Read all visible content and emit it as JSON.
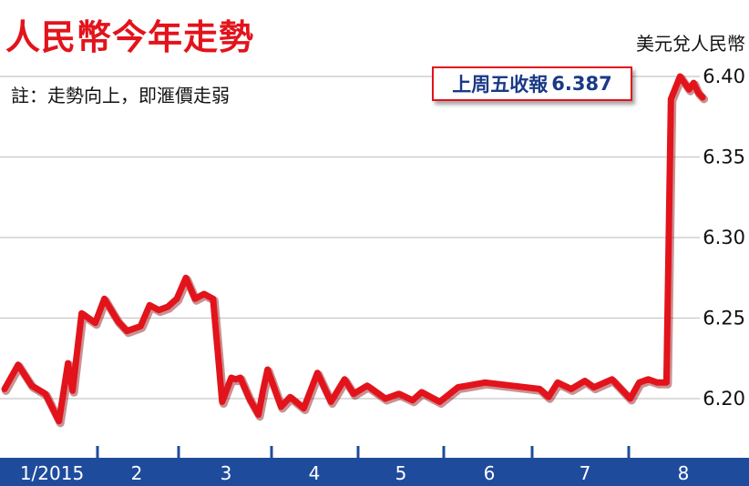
{
  "chart_data": {
    "type": "line",
    "title": "人民幣今年走勢",
    "note": "註：走勢向上，即滙價走弱",
    "unit_label": "美元兌人民幣",
    "callout": {
      "label": "上周五收報",
      "value": "6.387"
    },
    "y_ticks": [
      "6.20",
      "6.25",
      "6.30",
      "6.35",
      "6.40"
    ],
    "ylim": [
      6.18,
      6.405
    ],
    "x_ticks": [
      "1/2015",
      "2",
      "3",
      "4",
      "5",
      "6",
      "7",
      "8"
    ],
    "grid": "horizontal",
    "colors": {
      "line": "#e3131b",
      "axis_bar": "#1f4b9d",
      "grid": "#c8c8c8"
    },
    "series": [
      {
        "x": [
          0.0,
          0.15,
          0.3,
          0.45,
          0.6,
          0.7,
          0.75,
          0.85,
          1.0,
          1.1,
          1.25,
          1.35,
          1.5,
          1.6,
          1.7,
          1.8,
          1.9,
          2.0,
          2.1,
          2.2,
          2.3,
          2.4,
          2.5,
          2.55,
          2.6,
          2.7,
          2.8,
          2.85,
          2.9,
          3.05,
          3.15,
          3.3,
          3.45,
          3.6,
          3.75,
          3.85,
          4.0,
          4.2,
          4.35,
          4.5,
          4.6,
          4.8,
          5.0,
          5.3,
          5.6,
          5.9,
          6.0,
          6.1,
          6.25,
          6.4,
          6.5,
          6.7,
          6.9,
          7.0,
          7.1,
          7.2,
          7.25,
          7.3,
          7.35,
          7.45,
          7.55,
          7.6,
          7.65,
          7.7
        ],
        "values": [
          6.206,
          6.221,
          6.208,
          6.203,
          6.186,
          6.222,
          6.205,
          6.253,
          6.247,
          6.262,
          6.248,
          6.242,
          6.245,
          6.258,
          6.255,
          6.257,
          6.262,
          6.275,
          6.262,
          6.265,
          6.262,
          6.198,
          6.213,
          6.212,
          6.213,
          6.2,
          6.19,
          6.205,
          6.218,
          6.195,
          6.201,
          6.194,
          6.216,
          6.198,
          6.212,
          6.203,
          6.208,
          6.2,
          6.203,
          6.199,
          6.204,
          6.198,
          6.207,
          6.21,
          6.208,
          6.206,
          6.201,
          6.21,
          6.206,
          6.211,
          6.207,
          6.212,
          6.2,
          6.21,
          6.212,
          6.21,
          6.21,
          6.21,
          6.386,
          6.4,
          6.392,
          6.396,
          6.39,
          6.387
        ]
      }
    ]
  }
}
